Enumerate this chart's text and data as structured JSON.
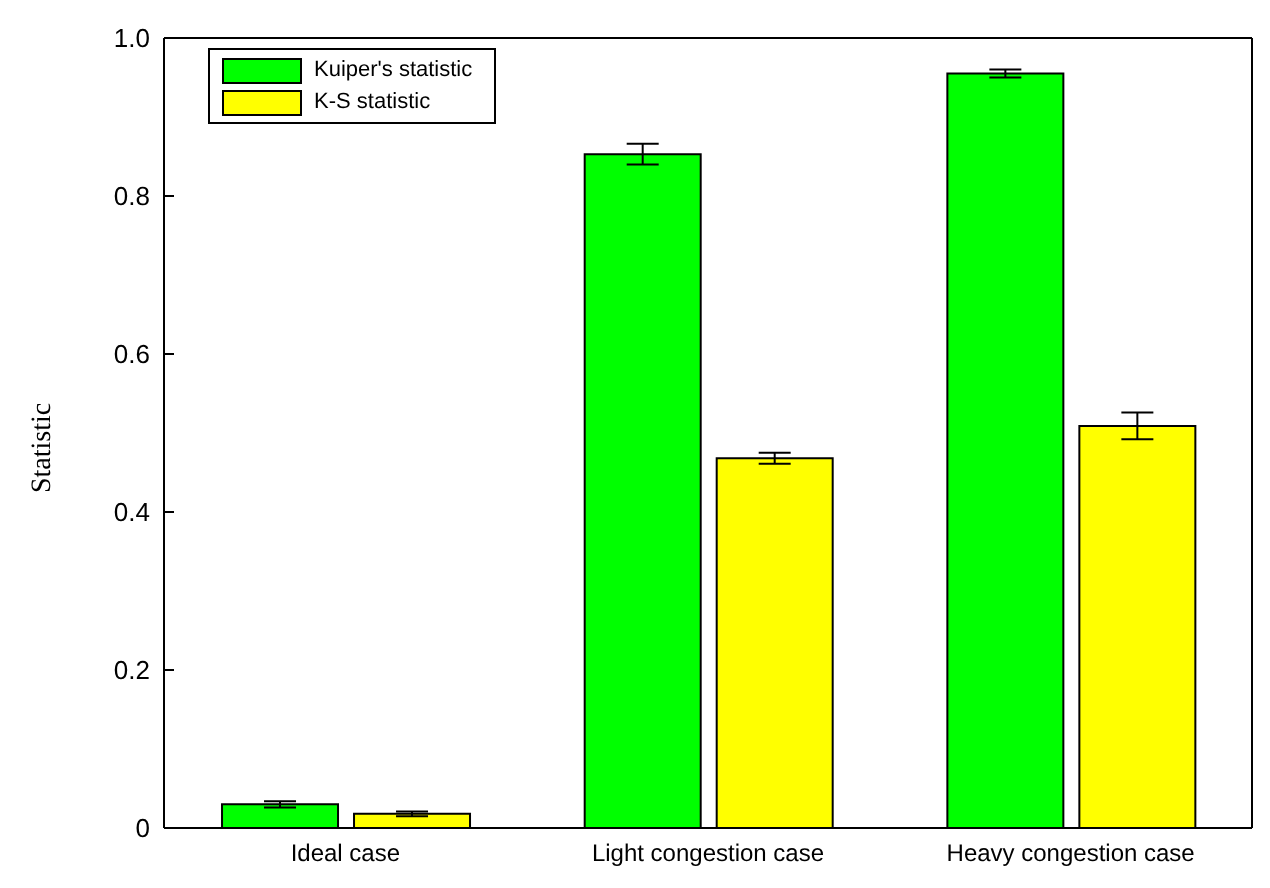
{
  "chart_data": {
    "type": "bar",
    "ylabel": "Statistic",
    "categories": [
      "Ideal case",
      "Light congestion case",
      "Heavy congestion case"
    ],
    "series": [
      {
        "name": "Kuiper's statistic",
        "color": "#00ff00",
        "values": [
          0.03,
          0.853,
          0.955
        ],
        "errors": [
          0.004,
          0.013,
          0.005
        ]
      },
      {
        "name": "K-S statistic",
        "color": "#ffff00",
        "values": [
          0.018,
          0.468,
          0.509
        ],
        "errors": [
          0.003,
          0.007,
          0.017
        ]
      }
    ],
    "ylim": [
      0,
      1
    ],
    "yticks": [
      0,
      0.2,
      0.4,
      0.6,
      0.8,
      {
        "value": 1,
        "label": "1.0"
      }
    ],
    "grid": false,
    "legend": "top left"
  }
}
